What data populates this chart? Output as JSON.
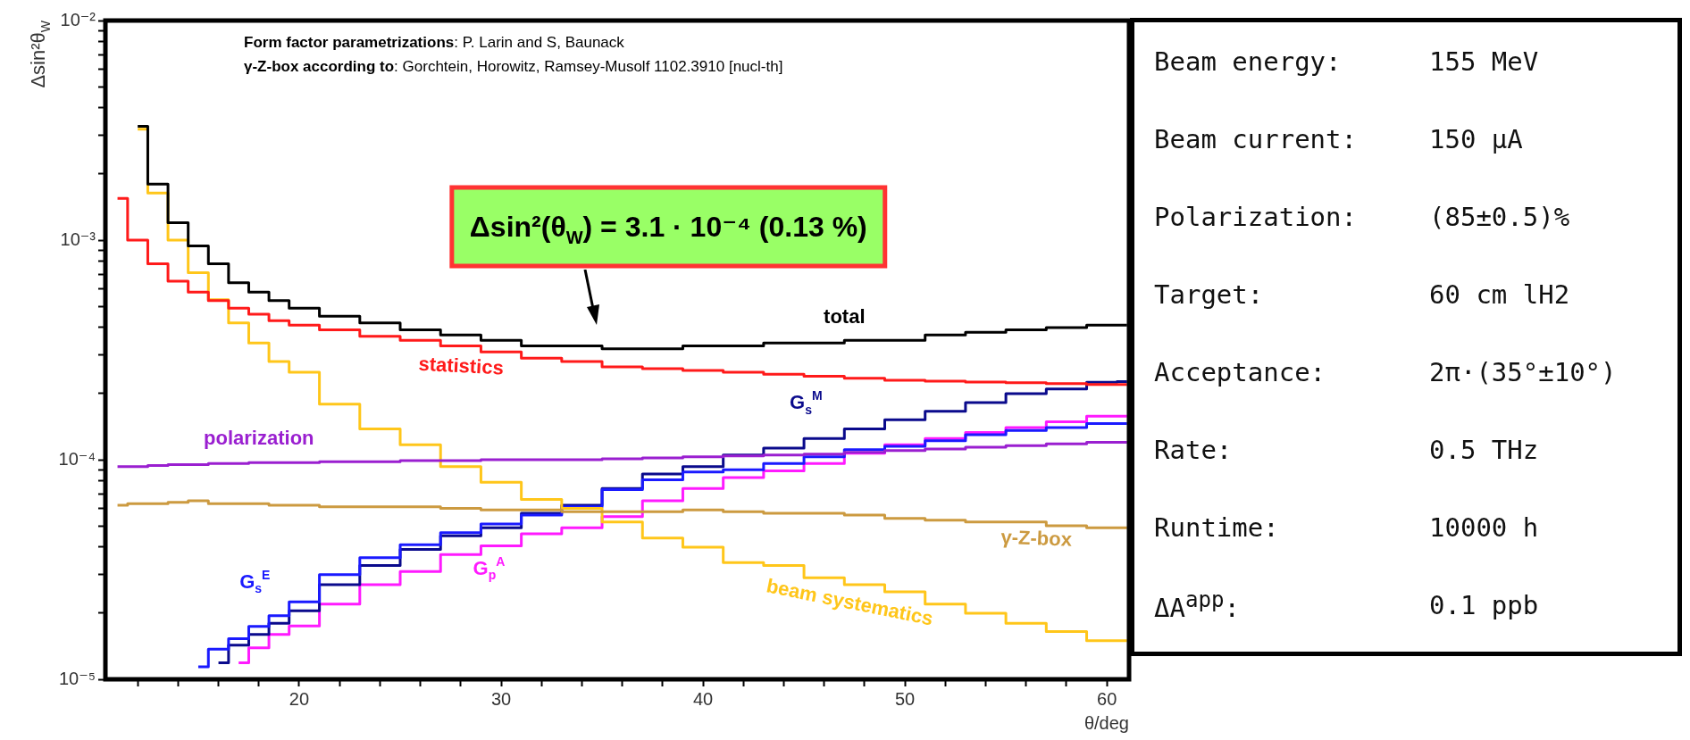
{
  "chart_data": [
    {
      "type": "step",
      "xlabel": "θ/deg",
      "ylabel": "Δsin²θ$_{W}$",
      "log": true,
      "xlim": [
        10.4,
        61.1
      ],
      "ylim": [
        1e-05,
        0.01
      ],
      "xticks": [
        {
          "value": 12,
          "label": null
        },
        {
          "value": 14,
          "label": null
        },
        {
          "value": 16,
          "label": null
        },
        {
          "value": 18,
          "label": null
        },
        20,
        {
          "value": 22,
          "label": null
        },
        {
          "value": 24,
          "label": null
        },
        {
          "value": 26,
          "label": null
        },
        {
          "value": 28,
          "label": null
        },
        30,
        {
          "value": 32,
          "label": null
        },
        {
          "value": 34,
          "label": null
        },
        {
          "value": 36,
          "label": null
        },
        {
          "value": 38,
          "label": null
        },
        40,
        {
          "value": 42,
          "label": null
        },
        {
          "value": 44,
          "label": null
        },
        {
          "value": 46,
          "label": null
        },
        {
          "value": 48,
          "label": null
        },
        50,
        {
          "value": 52,
          "label": null
        },
        {
          "value": 54,
          "label": null
        },
        {
          "value": 56,
          "label": null
        },
        {
          "value": 58,
          "label": null
        },
        60
      ],
      "yticks": [
        {
          "value": 1e-05,
          "label": "10⁻⁵"
        },
        {
          "value": 2e-05,
          "label": null
        },
        {
          "value": 3e-05,
          "label": null
        },
        {
          "value": 4e-05,
          "label": null
        },
        {
          "value": 5e-05,
          "label": null
        },
        {
          "value": 6e-05,
          "label": null
        },
        {
          "value": 7e-05,
          "label": null
        },
        {
          "value": 8e-05,
          "label": null
        },
        {
          "value": 9e-05,
          "label": null
        },
        {
          "value": 0.0001,
          "label": "10⁻⁴"
        },
        {
          "value": 0.0002,
          "label": null
        },
        {
          "value": 0.0003,
          "label": null
        },
        {
          "value": 0.0004,
          "label": null
        },
        {
          "value": 0.0005,
          "label": null
        },
        {
          "value": 0.0006,
          "label": null
        },
        {
          "value": 0.0007,
          "label": null
        },
        {
          "value": 0.0008,
          "label": null
        },
        {
          "value": 0.0009,
          "label": null
        },
        {
          "value": 0.001,
          "label": "10⁻³"
        },
        {
          "value": 0.002,
          "label": null
        },
        {
          "value": 0.003,
          "label": null
        },
        {
          "value": 0.004,
          "label": null
        },
        {
          "value": 0.005,
          "label": null
        },
        {
          "value": 0.006,
          "label": null
        },
        {
          "value": 0.007,
          "label": null
        },
        {
          "value": 0.008,
          "label": null
        },
        {
          "value": 0.009,
          "label": null
        },
        {
          "value": 0.01,
          "label": "10⁻²"
        }
      ],
      "x": [
        11,
        12,
        13,
        14,
        15,
        16,
        17,
        18,
        19,
        20,
        22,
        24,
        26,
        28,
        30,
        32,
        34,
        36,
        38,
        40,
        42,
        44,
        46,
        48,
        50,
        52,
        54,
        56,
        58,
        60,
        61
      ],
      "series": [
        {
          "name": "total",
          "color": "#000000",
          "values": [
            null,
            0.0033,
            0.0018,
            0.0012,
            0.00094,
            0.00078,
            0.00064,
            0.00058,
            0.00053,
            0.00049,
            0.00045,
            0.00042,
            0.00039,
            0.00037,
            0.00035,
            0.00033,
            0.00033,
            0.00032,
            0.00032,
            0.00033,
            0.00033,
            0.00034,
            0.00034,
            0.00035,
            0.00035,
            0.00037,
            0.00038,
            0.00039,
            0.0004,
            0.00041,
            0.00041
          ]
        },
        {
          "name": "statistics",
          "color": "#ff1a1a",
          "values": [
            0.00155,
            0.001,
            0.00078,
            0.00065,
            0.00058,
            0.00053,
            0.00049,
            0.00046,
            0.00043,
            0.00041,
            0.00039,
            0.000365,
            0.00035,
            0.00033,
            0.00031,
            0.00029,
            0.00028,
            0.000265,
            0.00026,
            0.000255,
            0.00025,
            0.000245,
            0.00024,
            0.000235,
            0.00023,
            0.000228,
            0.000226,
            0.000224,
            0.000222,
            0.00022,
            0.00022
          ]
        },
        {
          "name": "polarization",
          "color": "#9a1fd0",
          "values": [
            9.3e-05,
            9.3e-05,
            9.4e-05,
            9.5e-05,
            9.5e-05,
            9.6e-05,
            9.6e-05,
            9.7e-05,
            9.7e-05,
            9.7e-05,
            9.8e-05,
            9.8e-05,
            9.9e-05,
            9.9e-05,
            0.0001,
            0.0001,
            0.0001,
            0.000101,
            0.000102,
            0.000103,
            0.000104,
            0.000105,
            0.000106,
            0.000108,
            0.00011,
            0.000112,
            0.000114,
            0.000116,
            0.000118,
            0.00012,
            0.00012
          ]
        },
        {
          "name": "γ-Z-box",
          "color": "#cc9a40",
          "values": [
            6.2e-05,
            6.3e-05,
            6.3e-05,
            6.4e-05,
            6.5e-05,
            6.3e-05,
            6.3e-05,
            6.3e-05,
            6.2e-05,
            6.2e-05,
            6.1e-05,
            6.1e-05,
            6.1e-05,
            6e-05,
            5.9e-05,
            5.9e-05,
            5.8e-05,
            5.8e-05,
            5.8e-05,
            5.9e-05,
            5.8e-05,
            5.7e-05,
            5.7e-05,
            5.6e-05,
            5.4e-05,
            5.3e-05,
            5.2e-05,
            5.2e-05,
            5e-05,
            4.9e-05,
            4.9e-05
          ]
        },
        {
          "name": "beam systematics",
          "color": "#ffc61a",
          "values": [
            null,
            0.0032,
            0.00164,
            0.001,
            0.00071,
            0.000535,
            0.00042,
            0.00034,
            0.00028,
            0.00025,
            0.000179,
            0.000138,
            0.000117,
            9.3e-05,
            7.9e-05,
            6.6e-05,
            6e-05,
            5.2e-05,
            4.4e-05,
            4e-05,
            3.4e-05,
            3.3e-05,
            2.9e-05,
            2.7e-05,
            2.5e-05,
            2.2e-05,
            2e-05,
            1.8e-05,
            1.65e-05,
            1.5e-05,
            1.5e-05
          ]
        },
        {
          "name": "G$_{s}$$^{E}$",
          "color": "#1a1aff",
          "values": [
            null,
            null,
            null,
            null,
            1.14e-05,
            1.37e-05,
            1.53e-05,
            1.74e-05,
            1.95e-05,
            2.25e-05,
            3e-05,
            3.58e-05,
            4.1e-05,
            4.65e-05,
            5.1e-05,
            5.6e-05,
            6.1e-05,
            7.3e-05,
            8.1e-05,
            8.8e-05,
            9e-05,
            9.6e-05,
            0.000103,
            0.000111,
            0.000115,
            0.000122,
            0.00013,
            0.000136,
            0.00014,
            0.000146,
            0.000146
          ]
        },
        {
          "name": "G$_{s}$$^{M}$",
          "color": "#0a0a8c",
          "values": [
            null,
            null,
            null,
            null,
            null,
            1.19e-05,
            1.43e-05,
            1.6e-05,
            1.8e-05,
            2.05e-05,
            2.7e-05,
            3.3e-05,
            3.9e-05,
            4.5e-05,
            4.9e-05,
            5.7e-05,
            6.2e-05,
            7.4e-05,
            8.6e-05,
            9.3e-05,
            0.000105,
            0.000113,
            0.000125,
            0.000138,
            0.000152,
            0.000166,
            0.000182,
            0.0002,
            0.00021,
            0.000225,
            0.000227
          ]
        },
        {
          "name": "G$_{p}$$^{A}$",
          "color": "#ff1aff",
          "values": [
            null,
            null,
            null,
            null,
            null,
            null,
            1.19e-05,
            1.39e-05,
            1.6e-05,
            1.75e-05,
            2.2e-05,
            2.7e-05,
            3.1e-05,
            3.7e-05,
            4.05e-05,
            4.6e-05,
            4.9e-05,
            5.5e-05,
            6.5e-05,
            7.4e-05,
            8.3e-05,
            8.9e-05,
            9.6e-05,
            0.000107,
            0.000117,
            0.000125,
            0.000133,
            0.00014,
            0.000149,
            0.000158,
            0.000158
          ]
        }
      ],
      "annotations": [
        "Form factor parametrizations: P. Larin and S, Baunack",
        "γ-Z-box according to: Gorchtein, Horowitz, Ramsey-Musolf 1102.3910 [nucl-th]",
        "Δsin²(θ$_{W}$) = 3.1 · 10⁻⁴ (0.13 %)"
      ]
    },
    {
      "type": "other",
      "annotations": [
        "Beam energy: 155 MeV",
        "Beam current: 150 μA",
        "Polarization: (85±0.5)%",
        "Target: 60 cm lH2",
        "Acceptance: 2π·(35°±10°)",
        "Rate: 0.5 THz",
        "Runtime: 10000 h",
        "ΔA$^{app}$: 0.1 ppb"
      ]
    }
  ]
}
